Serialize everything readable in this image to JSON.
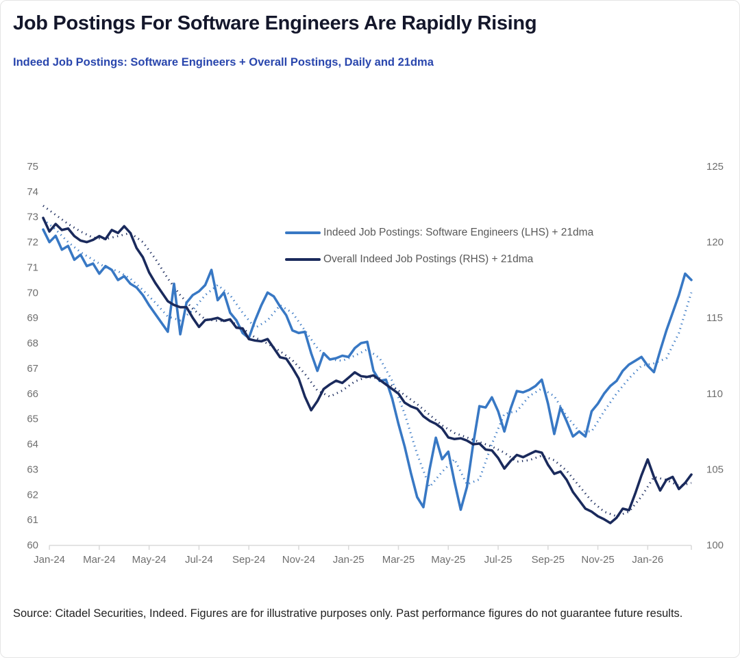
{
  "header": {
    "title": "Job Postings For Software Engineers Are Rapidly Rising",
    "subtitle": "Indeed Job Postings: Software Engineers + Overall Postings, Daily and 21dma"
  },
  "footer": {
    "source_text": "Source: Citadel Securities, Indeed. Figures are for illustrative purposes only. Past performance figures do not guarantee future results."
  },
  "colors": {
    "blue_series": "#3878c4",
    "navy_series": "#1a2a5c",
    "title_text": "#14172b",
    "subtitle_text": "#2946ad",
    "axis_text": "#6e6e6e",
    "legend_text": "#595959",
    "axis_line": "#d9d9d9"
  },
  "chart_data": {
    "type": "line",
    "title": "Indeed Job Postings: Software Engineers + Overall Postings, Daily and 21dma",
    "x_unit": "months since Jan-2024 (data spans Jan-24 through late Feb-26)",
    "x_range": [
      0,
      26
    ],
    "x_ticks": {
      "months": [
        0,
        2,
        4,
        6,
        8,
        10,
        12,
        14,
        16,
        18,
        20,
        22,
        24
      ],
      "labels": [
        "Jan-24",
        "Mar-24",
        "May-24",
        "Jul-24",
        "Sep-24",
        "Nov-24",
        "Jan-25",
        "Mar-25",
        "May-25",
        "Jul-25",
        "Sep-25",
        "Nov-25",
        "Jan-26"
      ]
    },
    "left_axis": {
      "min": 60,
      "max": 75,
      "ticks": [
        60,
        61,
        62,
        63,
        64,
        65,
        66,
        67,
        68,
        69,
        70,
        71,
        72,
        73,
        74,
        75
      ]
    },
    "right_axis": {
      "min": 100,
      "max": 125,
      "ticks": [
        100,
        105,
        110,
        115,
        120,
        125
      ]
    },
    "grid": false,
    "legend_position": "inside-top-center",
    "legend": [
      {
        "label": "Indeed Job Postings: Software Engineers (LHS) + 21dma",
        "color": "#3878c4"
      },
      {
        "label": "Overall Indeed Job Postings (RHS) + 21dma",
        "color": "#1a2a5c"
      }
    ],
    "series": [
      {
        "name": "Indeed Job Postings: Software Engineers (LHS) daily",
        "axis": "left",
        "style": "solid",
        "color": "#3878c4",
        "step_months": 0.25,
        "values": [
          72.5,
          72.0,
          72.25,
          71.7,
          71.85,
          71.3,
          71.5,
          71.05,
          71.15,
          70.75,
          71.05,
          70.9,
          70.5,
          70.65,
          70.35,
          70.2,
          69.9,
          69.5,
          69.15,
          68.8,
          68.45,
          70.35,
          68.35,
          69.6,
          69.9,
          70.05,
          70.3,
          70.9,
          69.7,
          70.0,
          69.2,
          68.9,
          68.4,
          68.2,
          68.9,
          69.5,
          70.0,
          69.85,
          69.45,
          69.1,
          68.5,
          68.4,
          68.45,
          67.6,
          66.9,
          67.6,
          67.35,
          67.4,
          67.5,
          67.45,
          67.8,
          68.0,
          68.05,
          66.9,
          66.5,
          66.55,
          65.8,
          64.8,
          63.9,
          62.85,
          61.9,
          61.5,
          63.0,
          64.25,
          63.4,
          63.7,
          62.5,
          61.4,
          62.3,
          64.0,
          65.5,
          65.45,
          65.85,
          65.3,
          64.5,
          65.4,
          66.1,
          66.05,
          66.15,
          66.3,
          66.55,
          65.6,
          64.4,
          65.45,
          64.9,
          64.3,
          64.5,
          64.3,
          65.3,
          65.6,
          66.0,
          66.3,
          66.5,
          66.9,
          67.15,
          67.3,
          67.45,
          67.1,
          66.85,
          67.7,
          68.5,
          69.2,
          69.9,
          70.75,
          70.5
        ]
      },
      {
        "name": "Indeed Job Postings: Software Engineers (LHS) 21dma",
        "axis": "left",
        "style": "dotted",
        "color": "#3878c4",
        "step_months": 0.5,
        "values": [
          72.9,
          72.5,
          72.0,
          71.6,
          71.3,
          71.0,
          70.85,
          70.55,
          70.1,
          69.6,
          69.05,
          68.9,
          69.3,
          69.9,
          70.3,
          69.9,
          69.2,
          68.6,
          68.9,
          69.5,
          69.2,
          68.5,
          67.8,
          67.35,
          67.3,
          67.5,
          67.75,
          67.4,
          66.5,
          65.2,
          63.6,
          62.3,
          62.9,
          63.4,
          62.4,
          62.6,
          64.0,
          65.2,
          65.3,
          65.9,
          66.2,
          65.9,
          65.1,
          64.5,
          64.5,
          65.3,
          66.0,
          66.6,
          67.1,
          67.2,
          67.4,
          68.4,
          70.0
        ]
      },
      {
        "name": "Overall Indeed Job Postings (RHS) daily",
        "axis": "right",
        "style": "solid",
        "color": "#1a2a5c",
        "step_months": 0.25,
        "values": [
          121.6,
          120.7,
          121.2,
          120.8,
          120.9,
          120.4,
          120.1,
          120.0,
          120.15,
          120.4,
          120.2,
          120.8,
          120.6,
          121.05,
          120.6,
          119.6,
          119.0,
          118.0,
          117.3,
          116.7,
          116.1,
          115.85,
          115.7,
          115.7,
          115.0,
          114.4,
          114.85,
          114.9,
          115.0,
          114.8,
          114.9,
          114.35,
          114.3,
          113.6,
          113.5,
          113.45,
          113.6,
          113.0,
          112.4,
          112.3,
          111.7,
          111.0,
          109.8,
          108.9,
          109.5,
          110.3,
          110.6,
          110.85,
          110.7,
          111.05,
          111.4,
          111.15,
          111.1,
          111.2,
          110.9,
          110.6,
          110.3,
          110.0,
          109.4,
          109.15,
          109.0,
          108.5,
          108.2,
          108.0,
          107.7,
          107.1,
          107.0,
          107.05,
          106.9,
          106.65,
          106.7,
          106.3,
          106.25,
          105.75,
          105.05,
          105.55,
          105.95,
          105.8,
          106.0,
          106.2,
          106.1,
          105.3,
          104.7,
          104.85,
          104.3,
          103.5,
          102.95,
          102.4,
          102.2,
          101.9,
          101.7,
          101.45,
          101.8,
          102.4,
          102.3,
          103.4,
          104.6,
          105.65,
          104.5,
          103.6,
          104.3,
          104.5,
          103.7,
          104.1,
          104.65
        ]
      },
      {
        "name": "Overall Indeed Job Postings (RHS) 21dma",
        "axis": "right",
        "style": "dotted",
        "color": "#1a2a5c",
        "step_months": 0.5,
        "values": [
          122.4,
          121.8,
          121.2,
          120.7,
          120.3,
          120.2,
          120.4,
          120.6,
          120.0,
          118.9,
          117.6,
          116.5,
          115.6,
          114.9,
          114.8,
          114.8,
          114.3,
          113.7,
          113.3,
          112.8,
          112.2,
          111.3,
          110.2,
          109.8,
          110.2,
          110.8,
          111.1,
          111.0,
          110.5,
          109.9,
          109.3,
          108.6,
          107.9,
          107.4,
          107.1,
          106.8,
          106.5,
          106.1,
          105.5,
          105.6,
          105.9,
          105.6,
          104.9,
          103.9,
          102.9,
          102.2,
          101.9,
          102.2,
          103.2,
          104.5,
          104.3,
          103.9,
          104.1
        ]
      }
    ]
  }
}
